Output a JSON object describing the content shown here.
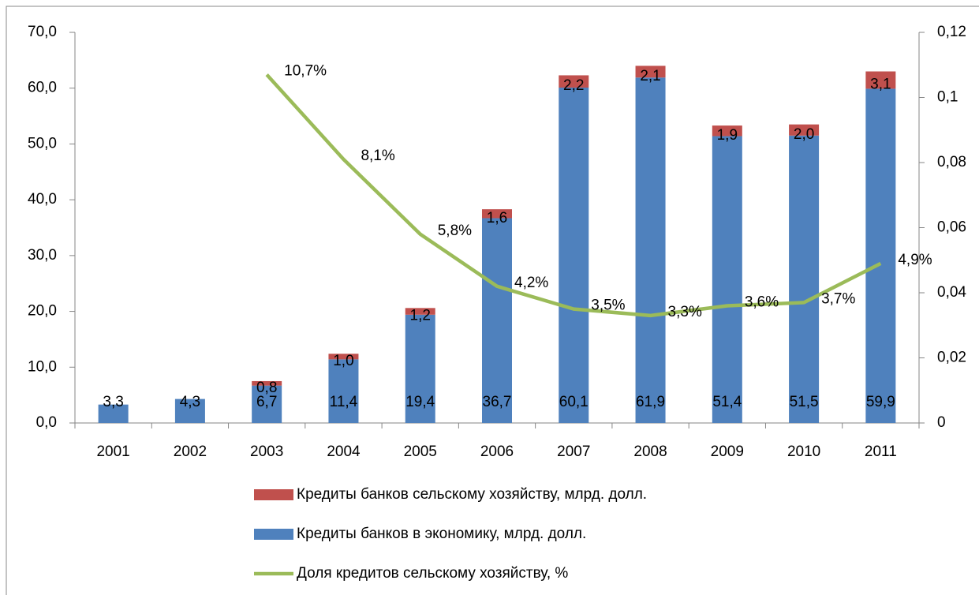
{
  "chart_data": {
    "type": "bar",
    "categories": [
      "2001",
      "2002",
      "2003",
      "2004",
      "2005",
      "2006",
      "2007",
      "2008",
      "2009",
      "2010",
      "2011"
    ],
    "series": [
      {
        "name": "Кредиты банков в экономику, млрд. долл.",
        "color": "#4f81bd",
        "stacked": true,
        "values": [
          3.3,
          4.3,
          6.7,
          11.4,
          19.4,
          36.7,
          60.1,
          61.9,
          51.4,
          51.5,
          59.9
        ],
        "value_labels": [
          "3,3",
          "4,3",
          "6,7",
          "11,4",
          "19,4",
          "36,7",
          "60,1",
          "61,9",
          "51,4",
          "51,5",
          "59,9"
        ]
      },
      {
        "name": "Кредиты банков сельскому хозяйству, млрд. долл.",
        "color": "#c0504d",
        "stacked": true,
        "values": [
          null,
          null,
          0.8,
          1.0,
          1.2,
          1.6,
          2.2,
          2.1,
          1.9,
          2.0,
          3.1
        ],
        "value_labels": [
          null,
          null,
          "0,8",
          "1,0",
          "1,2",
          "1,6",
          "2,2",
          "2,1",
          "1,9",
          "2,0",
          "3,1"
        ]
      },
      {
        "name": "Доля кредитов сельскому хозяйству, %",
        "color": "#9bbb59",
        "type": "line",
        "axis": "y2",
        "values": [
          null,
          null,
          0.107,
          0.081,
          0.058,
          0.042,
          0.035,
          0.033,
          0.036,
          0.037,
          0.049
        ],
        "value_labels": [
          null,
          null,
          "10,7%",
          "8,1%",
          "5,8%",
          "4,2%",
          "3,5%",
          "3,3%",
          "3,6%",
          "3,7%",
          "4,9%"
        ]
      }
    ],
    "ylim": [
      0,
      70
    ],
    "yticks": [
      {
        "value": 0,
        "label": "0,0"
      },
      {
        "value": 10,
        "label": "10,0"
      },
      {
        "value": 20,
        "label": "20,0"
      },
      {
        "value": 30,
        "label": "30,0"
      },
      {
        "value": 40,
        "label": "40,0"
      },
      {
        "value": 50,
        "label": "50,0"
      },
      {
        "value": 60,
        "label": "60,0"
      },
      {
        "value": 70,
        "label": "70,0"
      }
    ],
    "y2lim": [
      0,
      0.12
    ],
    "y2ticks": [
      0,
      {
        "value": 0.02,
        "label": "0,02"
      },
      {
        "value": 0.04,
        "label": "0,04"
      },
      {
        "value": 0.06,
        "label": "0,06"
      },
      {
        "value": 0.08,
        "label": "0,08"
      },
      {
        "value": 0.1,
        "label": "0,1"
      },
      {
        "value": 0.12,
        "label": "0,12"
      }
    ],
    "legend": "bottom"
  }
}
